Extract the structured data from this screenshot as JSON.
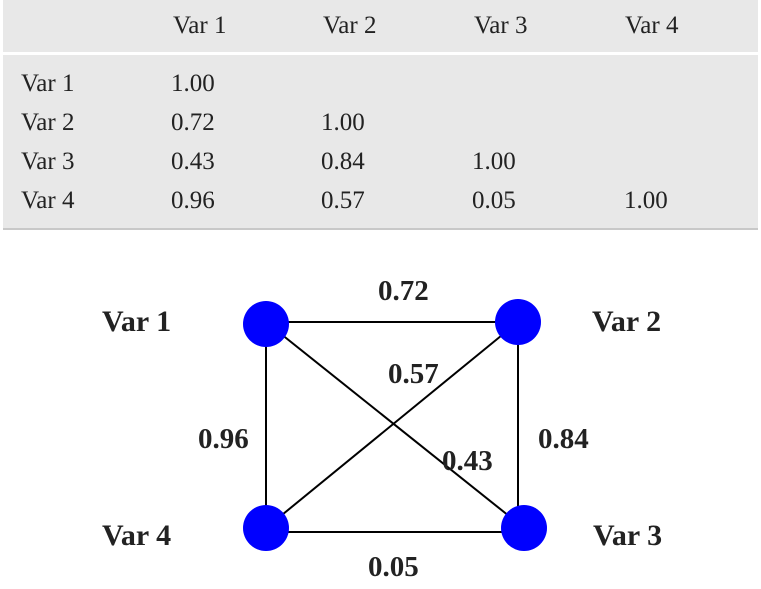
{
  "matrix": {
    "columns": [
      "Var 1",
      "Var 2",
      "Var 3",
      "Var 4"
    ],
    "rows": [
      {
        "label": "Var 1",
        "values": [
          "1.00",
          "",
          "",
          ""
        ]
      },
      {
        "label": "Var 2",
        "values": [
          "0.72",
          "1.00",
          "",
          ""
        ]
      },
      {
        "label": "Var 3",
        "values": [
          "0.43",
          "0.84",
          "1.00",
          ""
        ]
      },
      {
        "label": "Var 4",
        "values": [
          "0.96",
          "0.57",
          "0.05",
          "1.00"
        ]
      }
    ]
  },
  "graph": {
    "node_color": "#0000ff",
    "nodes": [
      {
        "id": "v1",
        "label": "Var 1"
      },
      {
        "id": "v2",
        "label": "Var 2"
      },
      {
        "id": "v3",
        "label": "Var 3"
      },
      {
        "id": "v4",
        "label": "Var 4"
      }
    ],
    "edges": [
      {
        "from": "v1",
        "to": "v2",
        "weight": "0.72"
      },
      {
        "from": "v4",
        "to": "v2",
        "weight": "0.57"
      },
      {
        "from": "v1",
        "to": "v4",
        "weight": "0.96"
      },
      {
        "from": "v1",
        "to": "v3",
        "weight": "0.43"
      },
      {
        "from": "v2",
        "to": "v3",
        "weight": "0.84"
      },
      {
        "from": "v4",
        "to": "v3",
        "weight": "0.05"
      }
    ]
  }
}
